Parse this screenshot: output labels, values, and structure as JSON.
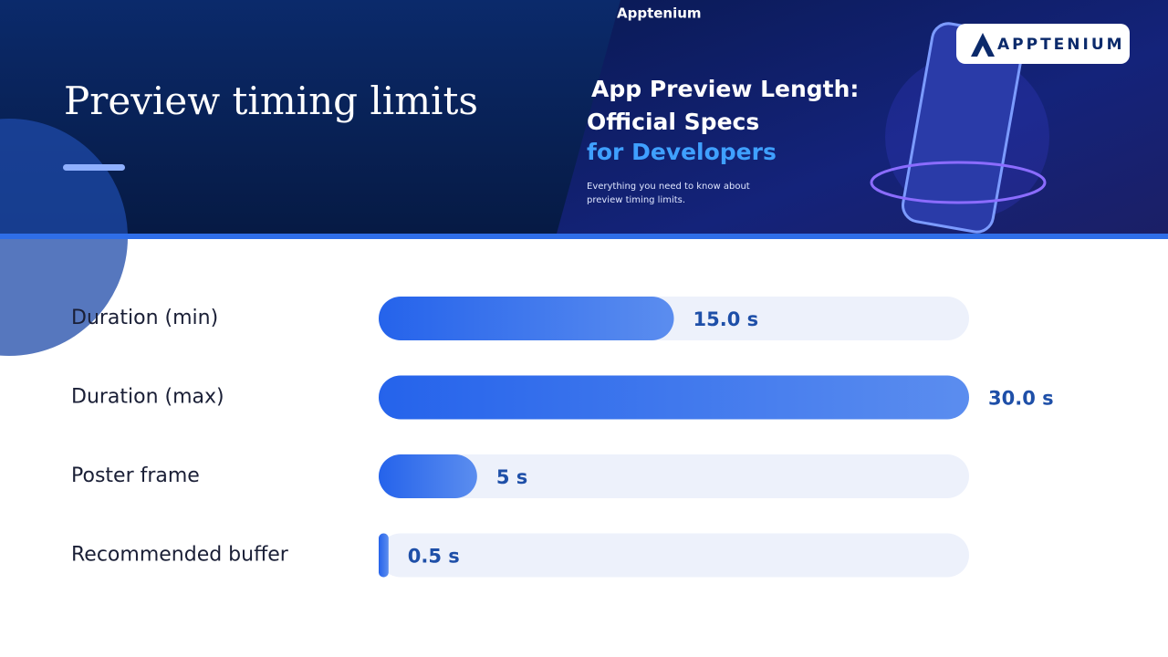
{
  "header": {
    "title": "Preview timing limits",
    "banner": {
      "brand": "Apptenium",
      "logo": "APPTENIUM",
      "headline": [
        "App Preview Length:",
        "Official Specs",
        "for Developers"
      ],
      "caption": [
        "Everything you need to know about",
        "preview timing limits."
      ]
    }
  },
  "chart_data": {
    "type": "bar",
    "orientation": "horizontal",
    "categories": [
      "Duration (min)",
      "Duration (max)",
      "Poster frame",
      "Recommended buffer"
    ],
    "values": [
      15,
      30,
      5,
      0.5
    ],
    "value_labels": [
      "15.0 s",
      "30.0 s",
      "5 s",
      "0.5 s"
    ],
    "color": "#2563eb"
  }
}
